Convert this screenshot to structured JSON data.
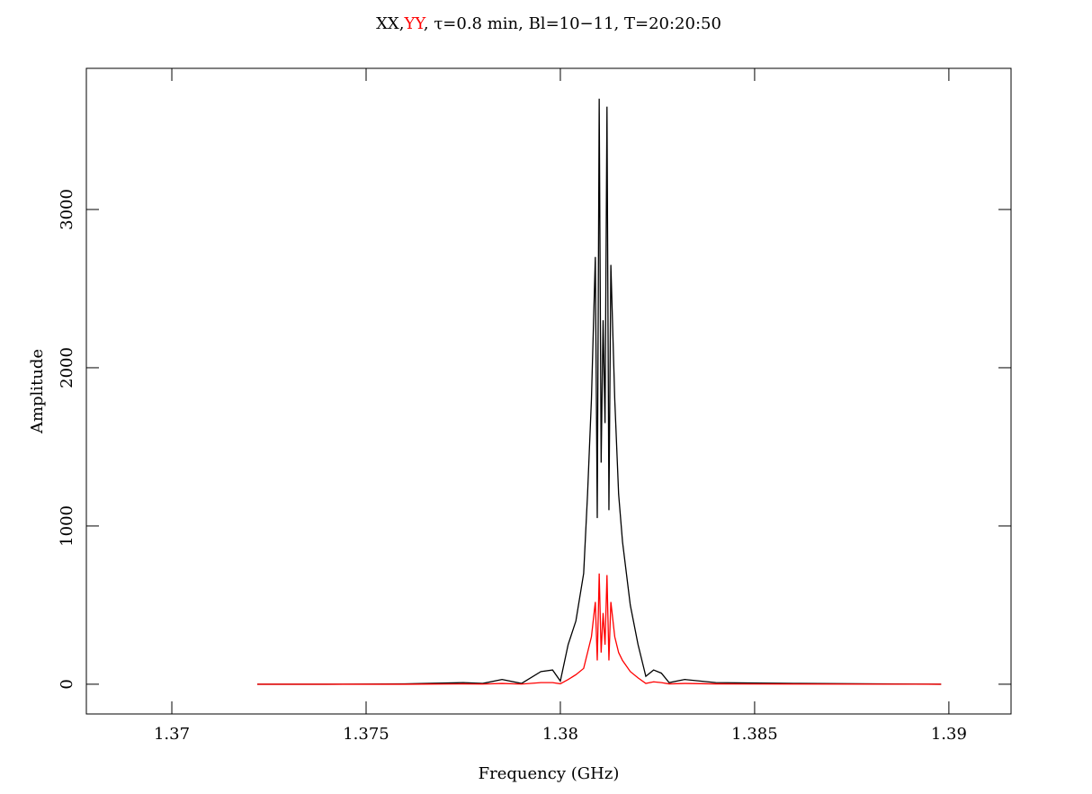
{
  "chart_data": {
    "type": "line",
    "title_parts": [
      {
        "text": "XX,",
        "color": "#000000"
      },
      {
        "text": "YY",
        "color": "#ff0000"
      },
      {
        "text": ", τ=0.8 min, Bl=10−11, T=20:20:50",
        "color": "#000000"
      }
    ],
    "x_label": "Frequency (GHz)",
    "y_label": "Amplitude",
    "x": [
      1.3722,
      1.374,
      1.376,
      1.3775,
      1.378,
      1.3785,
      1.379,
      1.3795,
      1.3798,
      1.38,
      1.3802,
      1.3804,
      1.3806,
      1.3807,
      1.3808,
      1.3809,
      1.38095,
      1.381,
      1.38105,
      1.3811,
      1.38115,
      1.3812,
      1.38125,
      1.3813,
      1.3814,
      1.3815,
      1.3816,
      1.3818,
      1.382,
      1.3822,
      1.3824,
      1.3826,
      1.3828,
      1.3832,
      1.384,
      1.386,
      1.3898
    ],
    "series": [
      {
        "color": "#000000",
        "values": [
          0,
          0,
          2,
          10,
          5,
          30,
          5,
          80,
          90,
          20,
          250,
          400,
          700,
          1200,
          1800,
          2700,
          1050,
          3700,
          1400,
          2300,
          1650,
          3650,
          1100,
          2650,
          1800,
          1200,
          900,
          500,
          250,
          50,
          90,
          70,
          10,
          30,
          10,
          5,
          0
        ]
      },
      {
        "color": "#ff0000",
        "values": [
          0,
          0,
          0,
          2,
          1,
          5,
          1,
          10,
          10,
          3,
          30,
          60,
          100,
          200,
          300,
          520,
          150,
          700,
          200,
          450,
          250,
          690,
          150,
          520,
          300,
          200,
          150,
          80,
          40,
          5,
          15,
          10,
          2,
          5,
          2,
          1,
          0
        ]
      }
    ],
    "xlim": [
      1.3678,
      1.3916
    ],
    "ylim": [
      -188,
      3892
    ],
    "xticks": [
      1.37,
      1.375,
      1.38,
      1.385,
      1.39
    ],
    "yticks": [
      0,
      1000,
      2000,
      3000
    ]
  }
}
